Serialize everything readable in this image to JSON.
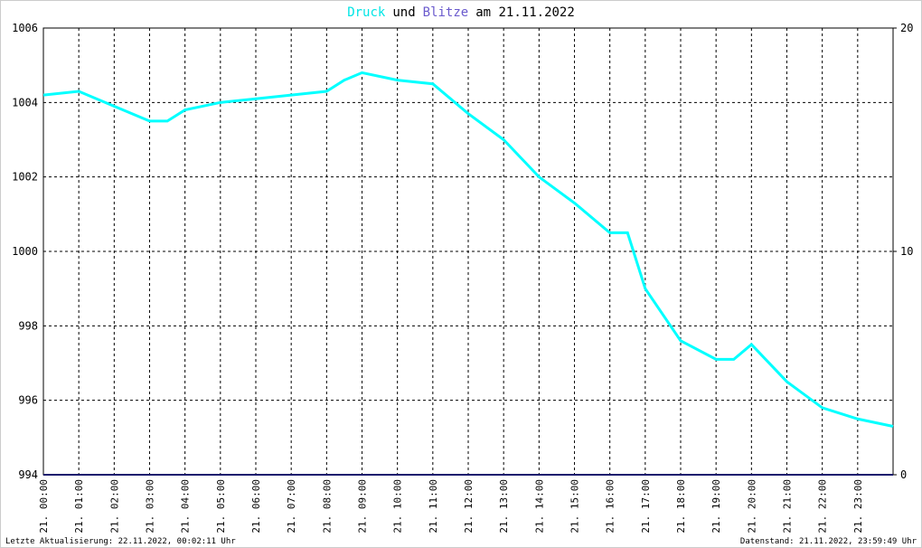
{
  "chart_data": {
    "type": "line",
    "title_parts": [
      {
        "text": "Druck",
        "color": "#00e5e5"
      },
      {
        "text": "und",
        "color": "#000000"
      },
      {
        "text": "Blitze",
        "color": "#6a5acd"
      },
      {
        "text": "am 21.11.2022",
        "color": "#000000"
      }
    ],
    "x": [
      0,
      1,
      2,
      3,
      3.5,
      4,
      5,
      6,
      7,
      8,
      8.5,
      9,
      10,
      11,
      12,
      13,
      14,
      15,
      16,
      16.5,
      17,
      18,
      19,
      19.5,
      20,
      21,
      22,
      23,
      24
    ],
    "series": [
      {
        "name": "Druck",
        "color": "#00ffff",
        "values": [
          1004.2,
          1004.3,
          1003.9,
          1003.5,
          1003.5,
          1003.8,
          1004.0,
          1004.1,
          1004.2,
          1004.3,
          1004.6,
          1004.8,
          1004.6,
          1004.5,
          1003.7,
          1003.0,
          1002.0,
          1001.3,
          1000.5,
          1000.5,
          999.0,
          997.6,
          997.1,
          997.1,
          997.5,
          996.5,
          995.8,
          995.5,
          995.3
        ]
      },
      {
        "name": "Blitze",
        "color": "#1a1a6e",
        "axis": "y2",
        "values": [
          0,
          0,
          0,
          0,
          0,
          0,
          0,
          0,
          0,
          0,
          0,
          0,
          0,
          0,
          0,
          0,
          0,
          0,
          0,
          0,
          0,
          0,
          0,
          0,
          0,
          0,
          0,
          0,
          0
        ]
      }
    ],
    "xlim": [
      0,
      24
    ],
    "xticks": [
      {
        "value": 0,
        "label": "21. 00:00"
      },
      {
        "value": 1,
        "label": "21. 01:00"
      },
      {
        "value": 2,
        "label": "21. 02:00"
      },
      {
        "value": 3,
        "label": "21. 03:00"
      },
      {
        "value": 4,
        "label": "21. 04:00"
      },
      {
        "value": 5,
        "label": "21. 05:00"
      },
      {
        "value": 6,
        "label": "21. 06:00"
      },
      {
        "value": 7,
        "label": "21. 07:00"
      },
      {
        "value": 8,
        "label": "21. 08:00"
      },
      {
        "value": 9,
        "label": "21. 09:00"
      },
      {
        "value": 10,
        "label": "21. 10:00"
      },
      {
        "value": 11,
        "label": "21. 11:00"
      },
      {
        "value": 12,
        "label": "21. 12:00"
      },
      {
        "value": 13,
        "label": "21. 13:00"
      },
      {
        "value": 14,
        "label": "21. 14:00"
      },
      {
        "value": 15,
        "label": "21. 15:00"
      },
      {
        "value": 16,
        "label": "21. 16:00"
      },
      {
        "value": 17,
        "label": "21. 17:00"
      },
      {
        "value": 18,
        "label": "21. 18:00"
      },
      {
        "value": 19,
        "label": "21. 19:00"
      },
      {
        "value": 20,
        "label": "21. 20:00"
      },
      {
        "value": 21,
        "label": "21. 21:00"
      },
      {
        "value": 22,
        "label": "21. 22:00"
      },
      {
        "value": 23,
        "label": "21. 23:00"
      }
    ],
    "ylim": [
      994,
      1006
    ],
    "yticks": [
      994,
      996,
      998,
      1000,
      1002,
      1004,
      1006
    ],
    "y2lim": [
      0,
      20
    ],
    "y2ticks": [
      0,
      10,
      20
    ],
    "grid": true,
    "footer_left": "Letzte Aktualisierung: 22.11.2022, 00:02:11 Uhr",
    "footer_right": "Datenstand: 21.11.2022, 23:59:49 Uhr"
  }
}
